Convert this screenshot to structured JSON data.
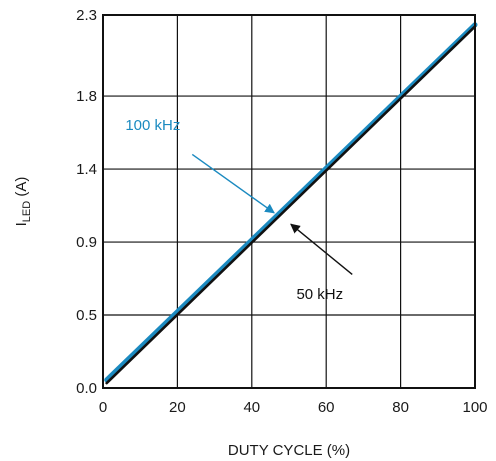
{
  "chart_data": {
    "type": "line",
    "xlabel": "DUTY CYCLE (%)",
    "ylabel_main": "I",
    "ylabel_sub": "LED",
    "ylabel_unit": " (A)",
    "xlim": [
      0,
      100
    ],
    "ylim": [
      0.0,
      2.3
    ],
    "x_ticks": [
      0,
      20,
      40,
      60,
      80,
      100
    ],
    "x_tick_labels": [
      "0",
      "20",
      "40",
      "60",
      "80",
      "100"
    ],
    "y_ticks": [
      0.0,
      0.45,
      0.9,
      1.35,
      1.8,
      2.3
    ],
    "y_tick_labels": [
      "0.0",
      "0.5",
      "0.9",
      "1.4",
      "1.8",
      "2.3"
    ],
    "grid": true,
    "series": [
      {
        "name": "100 kHz",
        "color": "#1b8ac0",
        "x": [
          1,
          100
        ],
        "y": [
          0.05,
          2.24
        ]
      },
      {
        "name": "50 kHz",
        "color": "#111111",
        "x": [
          1,
          100
        ],
        "y": [
          0.03,
          2.23
        ]
      }
    ],
    "annotations": [
      {
        "text": "100 kHz",
        "color": "#1b8ac0",
        "text_x": 6,
        "text_y": 1.59,
        "arrow_from": [
          24,
          1.44
        ],
        "arrow_to": [
          46,
          1.08
        ]
      },
      {
        "text": "50 kHz",
        "color": "#111111",
        "text_x": 52,
        "text_y": 0.55,
        "arrow_from": [
          67,
          0.7
        ],
        "arrow_to": [
          50.5,
          1.01
        ]
      }
    ]
  }
}
